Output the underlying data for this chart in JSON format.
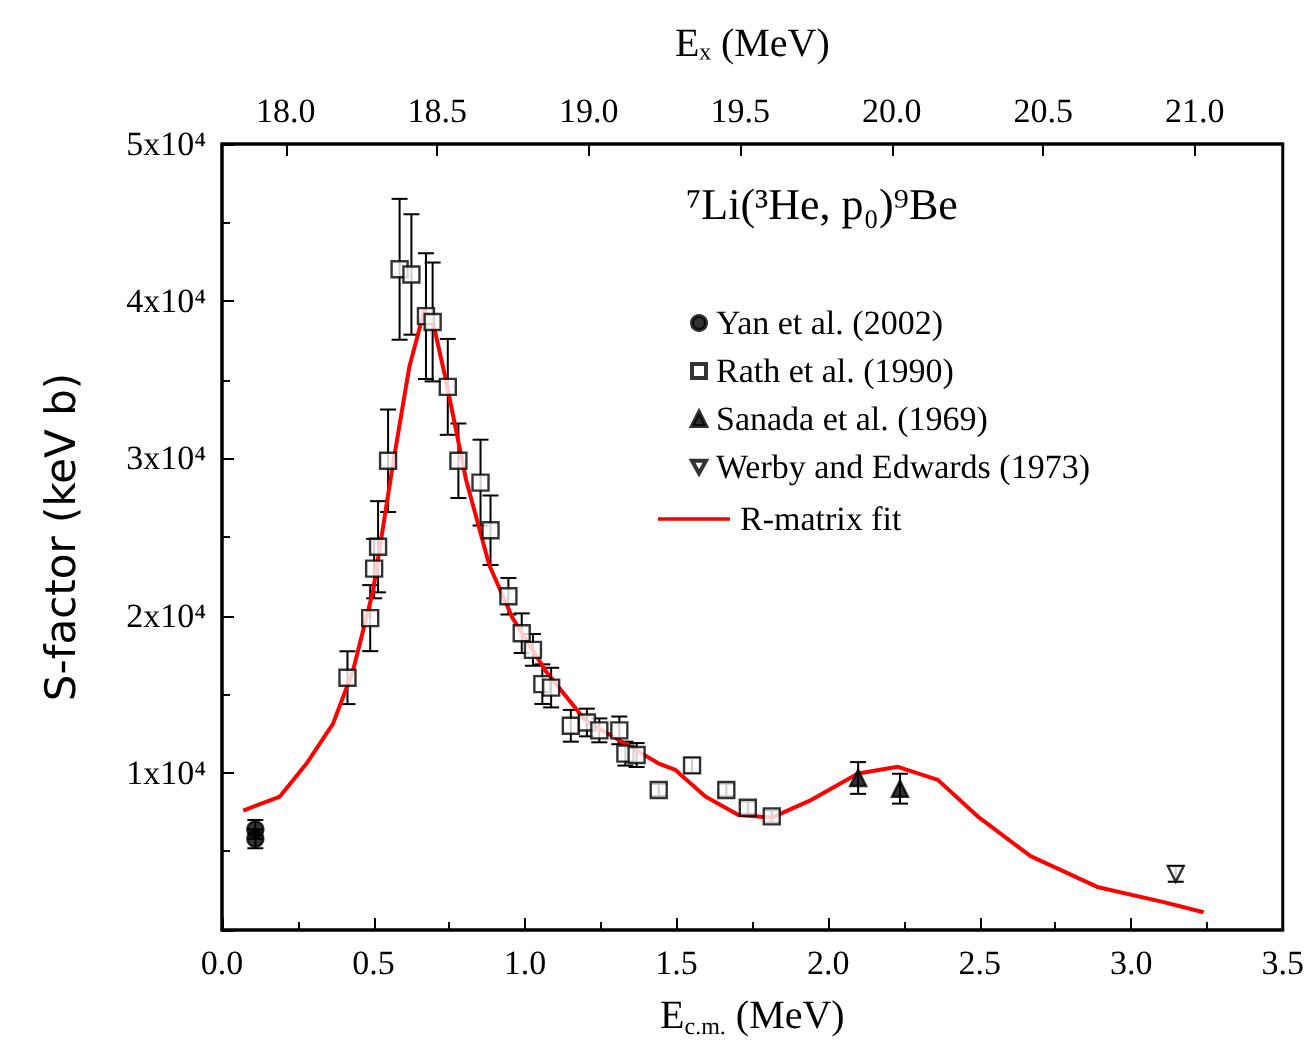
{
  "chart_data": {
    "type": "scatter",
    "xlabel": "E$_{c.m.}$ (MeV)",
    "x2label": "Eₓ (MeV)",
    "ylabel": "S-factor (keV b)",
    "legend_title": "⁷Li(³He, p₀)⁹Be",
    "xlim": [
      0,
      3.5
    ],
    "xticks": [
      {
        "value": 0,
        "label": "0.0"
      },
      {
        "value": 0.5,
        "label": "0.5"
      },
      {
        "value": 1,
        "label": "1.0"
      },
      {
        "value": 1.5,
        "label": "1.5"
      },
      {
        "value": 2,
        "label": "2.0"
      },
      {
        "value": 2.5,
        "label": "2.5"
      },
      {
        "value": 3,
        "label": "3.0"
      },
      {
        "value": 3.5,
        "label": "3.5"
      }
    ],
    "x2lim": [
      17.79,
      21.29
    ],
    "x2ticks": [
      {
        "value": 18,
        "label": "18.0"
      },
      {
        "value": 18.5,
        "label": "18.5"
      },
      {
        "value": 19,
        "label": "19.0"
      },
      {
        "value": 19.5,
        "label": "19.5"
      },
      {
        "value": 20,
        "label": "20.0"
      },
      {
        "value": 20.5,
        "label": "20.5"
      },
      {
        "value": 21,
        "label": "21.0"
      }
    ],
    "ylim": [
      0,
      50000
    ],
    "yticks": [
      {
        "value": 10000,
        "label": "1x10⁴"
      },
      {
        "value": 20000,
        "label": "2x10⁴"
      },
      {
        "value": 30000,
        "label": "3x10⁴"
      },
      {
        "value": 40000,
        "label": "4x10⁴"
      },
      {
        "value": 50000,
        "label": "5x10⁴"
      }
    ],
    "legend": "top right",
    "grid": false,
    "series": [
      {
        "name": "Yan et al. (2002)",
        "marker": "circle",
        "color": "#000000",
        "x": [
          0.11,
          0.11
        ],
        "values": [
          6400,
          5800
        ],
        "errors": [
          600,
          600
        ]
      },
      {
        "name": "Rath et al. (1990)",
        "marker": "square-open",
        "color": "#000000",
        "x": [
          0.414,
          0.489,
          0.502,
          0.515,
          0.548,
          0.586,
          0.625,
          0.673,
          0.695,
          0.745,
          0.78,
          0.853,
          0.886,
          0.945,
          0.989,
          1.026,
          1.057,
          1.086,
          1.151,
          1.204,
          1.245,
          1.311,
          1.331,
          1.368,
          1.441,
          1.551,
          1.664,
          1.735,
          1.814
        ],
        "values": [
          16050,
          19840,
          22990,
          24380,
          29850,
          42030,
          41700,
          39050,
          38680,
          34550,
          29850,
          28460,
          25430,
          21230,
          18880,
          17820,
          15640,
          15420,
          12990,
          13200,
          12700,
          12700,
          11220,
          11130,
          8910,
          10470,
          8910,
          7780,
          7230
        ],
        "errors": [
          1680,
          2100,
          1890,
          2900,
          3260,
          4480,
          3830,
          4000,
          3780,
          3050,
          2370,
          2730,
          2210,
          1160,
          1260,
          1010,
          1260,
          1260,
          1010,
          880,
          760,
          880,
          760,
          760,
          380,
          470,
          400,
          380,
          380
        ]
      },
      {
        "name": "Sanada et al. (1969)",
        "marker": "triangle",
        "color": "#000000",
        "x": [
          2.099,
          2.237
        ],
        "values": [
          9670,
          8990
        ],
        "errors": [
          1010,
          950
        ]
      },
      {
        "name": "Werby and Edwards (1973)",
        "marker": "triangle-down-open",
        "color": "#000000",
        "x": [
          3.147
        ],
        "values": [
          3570
        ],
        "errors": [
          500
        ]
      },
      {
        "name": "R-matrix fit",
        "type": "line",
        "marker": "none",
        "color": "#ff0000",
        "x": [
          0.07,
          0.191,
          0.279,
          0.366,
          0.432,
          0.498,
          0.563,
          0.618,
          0.667,
          0.695,
          0.739,
          0.805,
          0.882,
          0.959,
          1.068,
          1.199,
          1.386,
          1.441,
          1.496,
          1.595,
          1.704,
          1.814,
          1.945,
          2.099,
          2.23,
          2.362,
          2.493,
          2.668,
          2.888,
          3.107,
          3.239
        ],
        "values": [
          7600,
          8490,
          10590,
          13110,
          16480,
          21530,
          29510,
          35810,
          39380,
          38750,
          34970,
          28660,
          23200,
          19840,
          16480,
          13330,
          11220,
          10590,
          10180,
          8490,
          7310,
          7150,
          8280,
          9960,
          10380,
          9550,
          7230,
          4700,
          2740,
          1770,
          1130
        ]
      }
    ]
  }
}
